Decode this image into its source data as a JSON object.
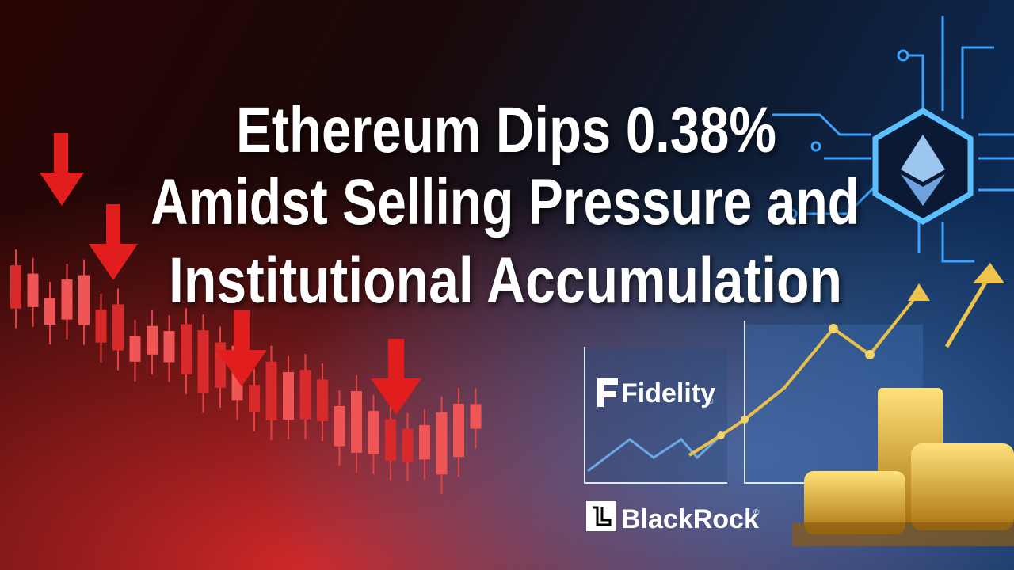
{
  "headline": {
    "lines": [
      "Ethereum Dips 0.38%",
      "Amidst Selling Pressure and",
      "Institutional Accumulation"
    ]
  },
  "logos": [
    {
      "name": "Fidelity",
      "mark": "®"
    },
    {
      "name": "BlackRock",
      "mark": "®"
    }
  ]
}
